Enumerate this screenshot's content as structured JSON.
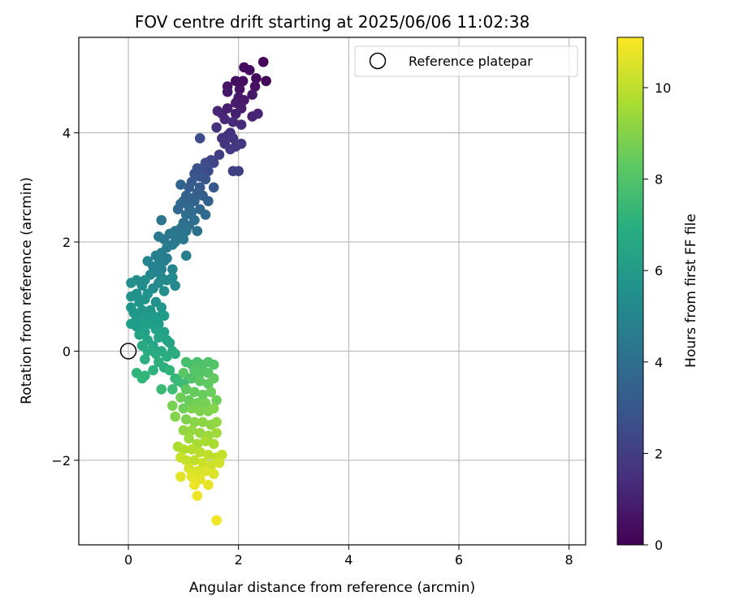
{
  "chart_data": {
    "type": "scatter",
    "title": "FOV centre drift starting at 2025/06/06 11:02:38",
    "xlabel": "Angular distance from reference (arcmin)",
    "ylabel": "Rotation from reference (arcmin)",
    "xlim": [
      -0.9,
      8.3
    ],
    "ylim": [
      -3.55,
      5.75
    ],
    "xticks": [
      0,
      2,
      4,
      6,
      8
    ],
    "yticks": [
      -2,
      0,
      2,
      4
    ],
    "xtick_labels": [
      "0",
      "2",
      "4",
      "6",
      "8"
    ],
    "ytick_labels": [
      "−2",
      "0",
      "2",
      "4"
    ],
    "grid": true,
    "legend": {
      "placement": "top-right",
      "entries": [
        "Reference platepar"
      ]
    },
    "reference_point": {
      "x": 0,
      "y": 0,
      "label": "Reference platepar"
    },
    "colorbar": {
      "label": "Hours from first FF file",
      "colormap": "viridis",
      "range": [
        0,
        11.1
      ],
      "ticks": [
        0,
        2,
        4,
        6,
        8,
        10
      ],
      "tick_labels": [
        "0",
        "2",
        "4",
        "6",
        "8",
        "10"
      ]
    },
    "series": [
      {
        "points": [
          [
            2.45,
            5.3
          ],
          [
            2.1,
            5.2
          ],
          [
            2.2,
            5.15
          ],
          [
            1.95,
            4.95
          ],
          [
            2.08,
            4.95
          ],
          [
            2.32,
            5.0
          ],
          [
            2.5,
            4.95
          ],
          [
            1.8,
            4.85
          ],
          [
            1.8,
            4.75
          ],
          [
            2.02,
            4.8
          ],
          [
            2.3,
            4.85
          ],
          [
            2.25,
            4.7
          ],
          [
            2.0,
            4.65
          ],
          [
            1.95,
            4.55
          ],
          [
            2.1,
            4.6
          ],
          [
            2.05,
            4.45
          ],
          [
            1.7,
            4.35
          ],
          [
            1.95,
            4.35
          ],
          [
            1.8,
            4.45
          ],
          [
            1.62,
            4.4
          ],
          [
            1.75,
            4.25
          ],
          [
            2.25,
            4.3
          ],
          [
            2.35,
            4.35
          ],
          [
            1.9,
            4.2
          ],
          [
            2.05,
            4.15
          ],
          [
            1.85,
            4.0
          ],
          [
            1.6,
            4.1
          ],
          [
            1.7,
            3.9
          ],
          [
            1.8,
            3.95
          ],
          [
            1.9,
            3.9
          ],
          [
            1.75,
            3.8
          ],
          [
            1.95,
            3.75
          ],
          [
            2.05,
            3.8
          ],
          [
            1.85,
            3.7
          ],
          [
            1.65,
            3.6
          ],
          [
            1.5,
            3.5
          ],
          [
            1.3,
            3.9
          ],
          [
            1.55,
            3.45
          ],
          [
            1.4,
            3.45
          ],
          [
            1.35,
            3.35
          ],
          [
            1.25,
            3.35
          ],
          [
            1.2,
            3.25
          ],
          [
            1.45,
            3.3
          ],
          [
            1.9,
            3.3
          ],
          [
            2.0,
            3.3
          ],
          [
            1.3,
            3.2
          ],
          [
            1.15,
            3.1
          ],
          [
            1.4,
            3.15
          ],
          [
            1.1,
            3.0
          ],
          [
            1.3,
            3.0
          ],
          [
            1.55,
            3.0
          ],
          [
            1.25,
            2.9
          ],
          [
            1.05,
            2.85
          ],
          [
            0.95,
            3.05
          ],
          [
            1.15,
            2.8
          ],
          [
            1.35,
            2.85
          ],
          [
            1.0,
            2.75
          ],
          [
            1.2,
            2.75
          ],
          [
            1.45,
            2.75
          ],
          [
            1.1,
            2.65
          ],
          [
            0.95,
            2.7
          ],
          [
            1.3,
            2.6
          ],
          [
            1.15,
            2.55
          ],
          [
            1.4,
            2.5
          ],
          [
            1.05,
            2.5
          ],
          [
            0.9,
            2.6
          ],
          [
            1.2,
            2.4
          ],
          [
            1.0,
            2.35
          ],
          [
            1.1,
            2.3
          ],
          [
            0.95,
            2.25
          ],
          [
            0.85,
            2.2
          ],
          [
            0.6,
            2.4
          ],
          [
            1.25,
            2.2
          ],
          [
            1.05,
            2.2
          ],
          [
            0.9,
            2.1
          ],
          [
            0.75,
            2.15
          ],
          [
            0.65,
            2.05
          ],
          [
            0.85,
            2.0
          ],
          [
            1.0,
            2.05
          ],
          [
            0.7,
            1.9
          ],
          [
            0.8,
            1.95
          ],
          [
            0.55,
            2.1
          ],
          [
            0.6,
            1.8
          ],
          [
            0.5,
            1.75
          ],
          [
            0.55,
            1.6
          ],
          [
            0.65,
            1.65
          ],
          [
            0.7,
            1.7
          ],
          [
            0.35,
            1.65
          ],
          [
            0.45,
            1.55
          ],
          [
            0.6,
            1.5
          ],
          [
            1.05,
            1.75
          ],
          [
            0.8,
            1.5
          ],
          [
            0.5,
            1.45
          ],
          [
            0.4,
            1.4
          ],
          [
            0.6,
            1.35
          ],
          [
            0.7,
            1.3
          ],
          [
            0.8,
            1.35
          ],
          [
            0.55,
            1.25
          ],
          [
            0.85,
            1.2
          ],
          [
            0.65,
            1.1
          ],
          [
            0.45,
            1.15
          ],
          [
            0.3,
            1.3
          ],
          [
            0.15,
            1.3
          ],
          [
            0.05,
            1.25
          ],
          [
            0.25,
            1.2
          ],
          [
            0.35,
            1.05
          ],
          [
            0.15,
            1.05
          ],
          [
            0.05,
            1.0
          ],
          [
            0.2,
            0.9
          ],
          [
            0.3,
            0.95
          ],
          [
            0.5,
            0.9
          ],
          [
            0.6,
            0.8
          ],
          [
            0.4,
            0.75
          ],
          [
            0.25,
            0.75
          ],
          [
            0.1,
            0.7
          ],
          [
            0.05,
            0.8
          ],
          [
            0.15,
            0.6
          ],
          [
            0.3,
            0.6
          ],
          [
            0.45,
            0.65
          ],
          [
            0.6,
            0.65
          ],
          [
            0.65,
            0.65
          ],
          [
            0.55,
            0.5
          ],
          [
            0.4,
            0.5
          ],
          [
            0.25,
            0.5
          ],
          [
            0.05,
            0.5
          ],
          [
            0.15,
            0.45
          ],
          [
            0.3,
            0.35
          ],
          [
            0.5,
            0.4
          ],
          [
            0.65,
            0.35
          ],
          [
            0.2,
            0.3
          ],
          [
            0.35,
            0.2
          ],
          [
            0.55,
            0.25
          ],
          [
            0.7,
            0.2
          ],
          [
            0.75,
            0.15
          ],
          [
            0.45,
            0.1
          ],
          [
            0.25,
            0.1
          ],
          [
            0.6,
            0.0
          ],
          [
            0.8,
            0.0
          ],
          [
            0.35,
            0.0
          ],
          [
            0.5,
            -0.05
          ],
          [
            0.7,
            -0.1
          ],
          [
            0.85,
            -0.05
          ],
          [
            0.3,
            -0.15
          ],
          [
            0.55,
            -0.2
          ],
          [
            0.65,
            -0.3
          ],
          [
            0.45,
            -0.35
          ],
          [
            0.3,
            -0.45
          ],
          [
            0.15,
            -0.4
          ],
          [
            0.25,
            -0.5
          ],
          [
            0.75,
            -0.35
          ],
          [
            0.85,
            -0.5
          ],
          [
            0.9,
            -0.55
          ],
          [
            1.0,
            -0.6
          ],
          [
            1.1,
            -0.5
          ],
          [
            0.6,
            -0.7
          ],
          [
            0.8,
            -0.7
          ],
          [
            1.05,
            -0.2
          ],
          [
            1.15,
            -0.25
          ],
          [
            1.25,
            -0.2
          ],
          [
            1.35,
            -0.25
          ],
          [
            1.45,
            -0.2
          ],
          [
            1.55,
            -0.25
          ],
          [
            1.2,
            -0.35
          ],
          [
            1.3,
            -0.4
          ],
          [
            1.45,
            -0.4
          ],
          [
            1.0,
            -0.4
          ],
          [
            1.15,
            -0.5
          ],
          [
            1.3,
            -0.55
          ],
          [
            1.45,
            -0.6
          ],
          [
            1.55,
            -0.5
          ],
          [
            1.05,
            -0.7
          ],
          [
            1.2,
            -0.75
          ],
          [
            1.35,
            -0.8
          ],
          [
            1.5,
            -0.75
          ],
          [
            1.6,
            -0.9
          ],
          [
            0.95,
            -0.85
          ],
          [
            1.1,
            -0.9
          ],
          [
            1.25,
            -0.95
          ],
          [
            1.4,
            -0.95
          ],
          [
            0.8,
            -1.0
          ],
          [
            1.0,
            -1.05
          ],
          [
            1.15,
            -1.05
          ],
          [
            1.3,
            -1.1
          ],
          [
            1.45,
            -1.1
          ],
          [
            1.55,
            -1.05
          ],
          [
            0.85,
            -1.2
          ],
          [
            1.05,
            -1.25
          ],
          [
            1.2,
            -1.3
          ],
          [
            1.35,
            -1.3
          ],
          [
            1.5,
            -1.35
          ],
          [
            1.6,
            -1.3
          ],
          [
            1.0,
            -1.45
          ],
          [
            1.15,
            -1.45
          ],
          [
            1.3,
            -1.5
          ],
          [
            1.45,
            -1.55
          ],
          [
            1.6,
            -1.5
          ],
          [
            1.1,
            -1.6
          ],
          [
            1.25,
            -1.7
          ],
          [
            1.4,
            -1.65
          ],
          [
            1.55,
            -1.7
          ],
          [
            0.9,
            -1.75
          ],
          [
            1.0,
            -1.8
          ],
          [
            1.15,
            -1.8
          ],
          [
            1.3,
            -1.85
          ],
          [
            1.45,
            -1.9
          ],
          [
            1.6,
            -1.95
          ],
          [
            1.7,
            -1.9
          ],
          [
            0.95,
            -1.95
          ],
          [
            1.05,
            -2.0
          ],
          [
            1.2,
            -2.0
          ],
          [
            1.35,
            -2.05
          ],
          [
            1.5,
            -2.1
          ],
          [
            1.65,
            -2.05
          ],
          [
            1.1,
            -2.15
          ],
          [
            1.25,
            -2.2
          ],
          [
            1.4,
            -2.2
          ],
          [
            1.55,
            -2.25
          ],
          [
            0.95,
            -2.3
          ],
          [
            1.15,
            -2.3
          ],
          [
            1.3,
            -2.35
          ],
          [
            1.45,
            -2.45
          ],
          [
            1.2,
            -2.45
          ],
          [
            1.25,
            -2.65
          ],
          [
            1.6,
            -3.1
          ]
        ],
        "hours": [
          0.2,
          0.35,
          0.3,
          0.45,
          0.4,
          0.25,
          0.15,
          0.6,
          0.7,
          0.55,
          0.5,
          0.65,
          0.75,
          0.85,
          0.8,
          0.9,
          1.1,
          1.0,
          0.95,
          1.2,
          1.25,
          1.05,
          1.15,
          1.3,
          1.35,
          1.5,
          1.55,
          1.65,
          1.6,
          1.7,
          1.75,
          1.8,
          1.85,
          1.9,
          2.0,
          2.3,
          2.6,
          2.4,
          2.5,
          2.7,
          2.8,
          2.9,
          2.55,
          2.05,
          2.1,
          3.0,
          3.1,
          2.95,
          3.2,
          3.15,
          3.05,
          3.3,
          3.4,
          3.6,
          3.45,
          3.35,
          3.5,
          3.55,
          3.4,
          3.65,
          3.7,
          3.75,
          3.8,
          3.85,
          3.9,
          3.75,
          4.0,
          4.05,
          4.1,
          4.15,
          4.2,
          4.3,
          4.1,
          4.2,
          4.35,
          4.4,
          4.45,
          4.5,
          4.4,
          4.6,
          4.55,
          4.5,
          4.7,
          4.8,
          4.9,
          4.85,
          4.75,
          5.0,
          4.95,
          4.9,
          4.8,
          5.0,
          5.05,
          5.1,
          5.15,
          5.2,
          5.25,
          5.3,
          5.3,
          5.4,
          5.35,
          5.45,
          5.5,
          5.55,
          5.5,
          5.6,
          5.6,
          5.65,
          5.7,
          5.7,
          5.6,
          5.8,
          5.85,
          5.8,
          5.9,
          5.85,
          5.9,
          6.0,
          6.0,
          6.05,
          6.1,
          6.1,
          6.2,
          6.25,
          6.2,
          6.1,
          6.3,
          6.3,
          6.35,
          6.4,
          6.45,
          6.5,
          6.4,
          6.5,
          6.6,
          6.7,
          6.7,
          6.6,
          6.75,
          6.8,
          6.85,
          6.9,
          6.95,
          7.0,
          7.0,
          7.1,
          7.2,
          7.25,
          7.3,
          7.2,
          7.4,
          7.5,
          7.6,
          7.7,
          7.55,
          7.6,
          7.8,
          7.85,
          7.9,
          7.95,
          8.0,
          8.05,
          8.1,
          8.1,
          8.15,
          8.2,
          8.0,
          8.25,
          8.3,
          8.35,
          8.3,
          8.45,
          8.5,
          8.55,
          8.6,
          8.65,
          8.5,
          8.7,
          8.75,
          8.8,
          8.6,
          8.85,
          8.9,
          8.95,
          9.0,
          9.0,
          8.9,
          9.1,
          9.15,
          9.2,
          9.25,
          9.25,
          9.3,
          9.35,
          9.4,
          9.5,
          9.45,
          9.6,
          9.65,
          9.7,
          9.7,
          9.8,
          9.85,
          9.9,
          10.0,
          10.05,
          10.1,
          10.2,
          10.15,
          10.0,
          10.25,
          10.3,
          10.35,
          10.4,
          10.4,
          10.5,
          10.55,
          10.6,
          10.65,
          10.6,
          10.7,
          10.8,
          10.85,
          10.9,
          10.85,
          11.0,
          11.1
        ]
      }
    ]
  }
}
